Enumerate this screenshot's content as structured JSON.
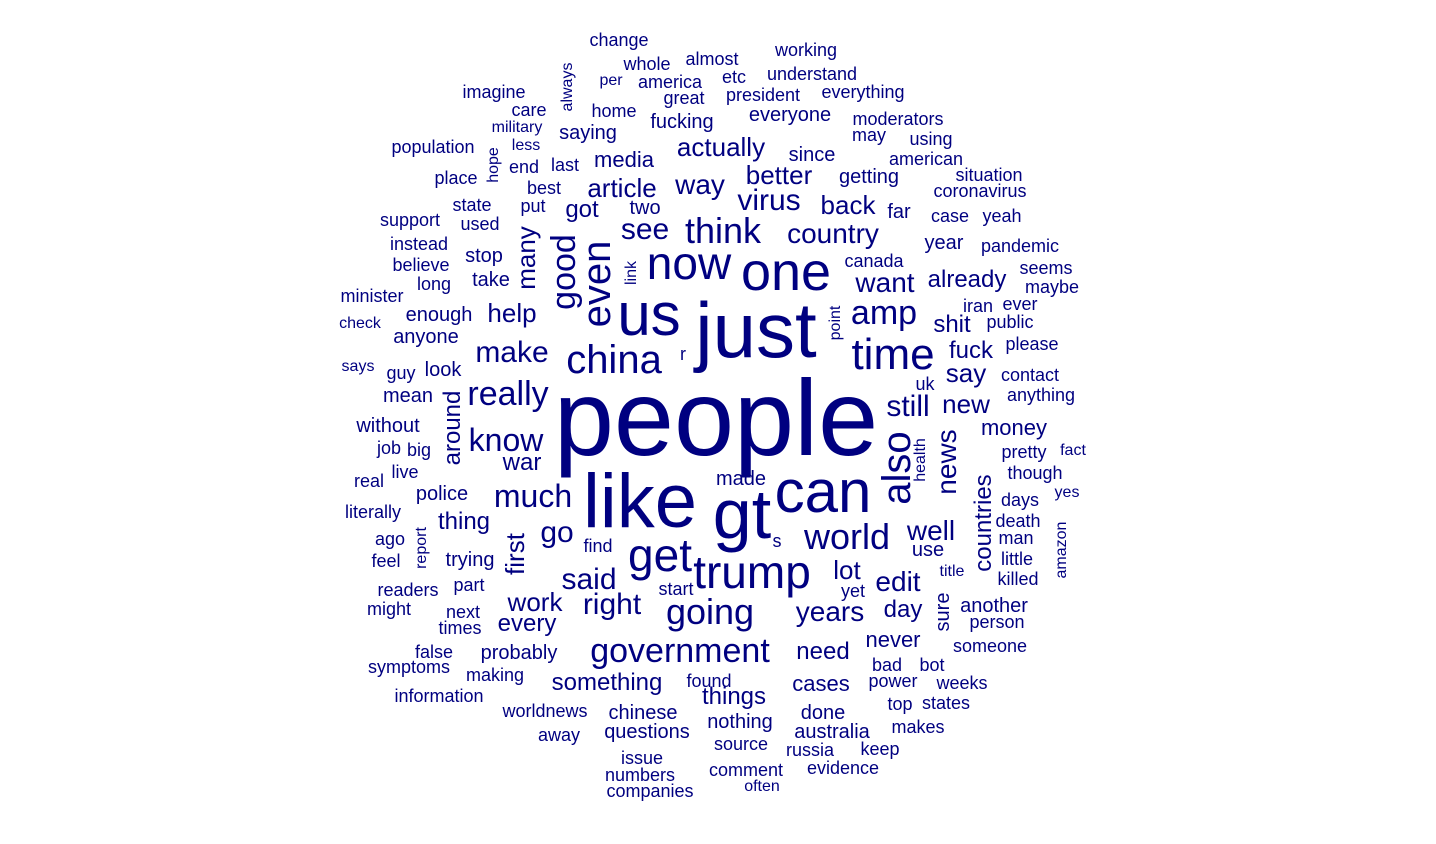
{
  "color": "#000080",
  "words": [
    {
      "text": "people",
      "size": 7
    },
    {
      "text": "just",
      "size": 6
    },
    {
      "text": "like",
      "size": 6
    },
    {
      "text": "gt",
      "size": 5
    },
    {
      "text": "can",
      "size": 5
    },
    {
      "text": "us",
      "size": 5
    },
    {
      "text": "one",
      "size": 5
    },
    {
      "text": "get",
      "size": 4
    },
    {
      "text": "trump",
      "size": 4
    },
    {
      "text": "now",
      "size": 4
    },
    {
      "text": "time",
      "size": 4
    },
    {
      "text": "china",
      "size": 4
    },
    {
      "text": "even",
      "size": 4
    },
    {
      "text": "also",
      "size": 4
    },
    {
      "text": "think",
      "size": 3
    },
    {
      "text": "world",
      "size": 3
    },
    {
      "text": "government",
      "size": 3
    },
    {
      "text": "going",
      "size": 3
    },
    {
      "text": "good",
      "size": 3
    },
    {
      "text": "amp",
      "size": 3
    },
    {
      "text": "really",
      "size": 3
    },
    {
      "text": "know",
      "size": 3
    },
    {
      "text": "much",
      "size": 3
    },
    {
      "text": "make",
      "size": 2
    },
    {
      "text": "said",
      "size": 2
    },
    {
      "text": "right",
      "size": 2
    },
    {
      "text": "see",
      "size": 2
    },
    {
      "text": "country",
      "size": 2
    },
    {
      "text": "virus",
      "size": 2
    },
    {
      "text": "want",
      "size": 2
    },
    {
      "text": "way",
      "size": 2
    },
    {
      "text": "still",
      "size": 2
    },
    {
      "text": "go",
      "size": 2
    },
    {
      "text": "well",
      "size": 2
    },
    {
      "text": "years",
      "size": 2
    },
    {
      "text": "edit",
      "size": 2
    },
    {
      "text": "news",
      "size": 2
    },
    {
      "text": "better",
      "size": 2
    },
    {
      "text": "back",
      "size": 2
    },
    {
      "text": "actually",
      "size": 2
    },
    {
      "text": "article",
      "size": 2
    },
    {
      "text": "help",
      "size": 2
    },
    {
      "text": "many",
      "size": 2
    },
    {
      "text": "first",
      "size": 2
    },
    {
      "text": "countries",
      "size": 2
    },
    {
      "text": "lot",
      "size": 2
    },
    {
      "text": "day",
      "size": 2
    },
    {
      "text": "war",
      "size": 2
    },
    {
      "text": "work",
      "size": 2
    },
    {
      "text": "around",
      "size": 2
    },
    {
      "text": "new",
      "size": 2
    },
    {
      "text": "say",
      "size": 2
    },
    {
      "text": "fuck",
      "size": 2
    },
    {
      "text": "shit",
      "size": 2
    },
    {
      "text": "already",
      "size": 2
    },
    {
      "text": "need",
      "size": 2
    },
    {
      "text": "got",
      "size": 2
    },
    {
      "text": "something",
      "size": 1
    },
    {
      "text": "every",
      "size": 1
    },
    {
      "text": "things",
      "size": 1
    },
    {
      "text": "cases",
      "size": 1
    },
    {
      "text": "thing",
      "size": 1
    },
    {
      "text": "never",
      "size": 1
    },
    {
      "text": "money",
      "size": 1
    },
    {
      "text": "media",
      "size": 1
    },
    {
      "text": "since",
      "size": 1
    },
    {
      "text": "everyone",
      "size": 1
    },
    {
      "text": "fucking",
      "size": 1
    },
    {
      "text": "saying",
      "size": 1
    },
    {
      "text": "probably",
      "size": 1
    },
    {
      "text": "police",
      "size": 1
    },
    {
      "text": "take",
      "size": 1
    },
    {
      "text": "stop",
      "size": 1
    },
    {
      "text": "year",
      "size": 1
    },
    {
      "text": "far",
      "size": 1
    },
    {
      "text": "getting",
      "size": 1
    },
    {
      "text": "two",
      "size": 1
    },
    {
      "text": "enough",
      "size": 1
    },
    {
      "text": "anyone",
      "size": 1
    },
    {
      "text": "look",
      "size": 1
    },
    {
      "text": "made",
      "size": 1
    },
    {
      "text": "use",
      "size": 1
    },
    {
      "text": "sure",
      "size": 1
    },
    {
      "text": "another",
      "size": 1
    },
    {
      "text": "done",
      "size": 1
    },
    {
      "text": "chinese",
      "size": 1
    },
    {
      "text": "nothing",
      "size": 1
    },
    {
      "text": "questions",
      "size": 1
    },
    {
      "text": "source",
      "size": 1
    },
    {
      "text": "australia",
      "size": 1
    },
    {
      "text": "president",
      "size": 1
    },
    {
      "text": "great",
      "size": 1
    },
    {
      "text": "home",
      "size": 1
    },
    {
      "text": "best",
      "size": 1
    },
    {
      "text": "used",
      "size": 1
    },
    {
      "text": "put",
      "size": 1
    },
    {
      "text": "last",
      "size": 1
    },
    {
      "text": "end",
      "size": 1
    },
    {
      "text": "trying",
      "size": 1
    },
    {
      "text": "part",
      "size": 1
    },
    {
      "text": "pretty",
      "size": 1
    },
    {
      "text": "though",
      "size": 1
    },
    {
      "text": "days",
      "size": 1
    },
    {
      "text": "uk",
      "size": 1
    },
    {
      "text": "health",
      "size": 1
    },
    {
      "text": "public",
      "size": 1
    },
    {
      "text": "please",
      "size": 1
    },
    {
      "text": "contact",
      "size": 1
    },
    {
      "text": "anything",
      "size": 1
    },
    {
      "text": "power",
      "size": 1
    },
    {
      "text": "bad",
      "size": 1
    },
    {
      "text": "bot",
      "size": 1
    },
    {
      "text": "american",
      "size": 1
    },
    {
      "text": "coronavirus",
      "size": 1
    },
    {
      "text": "pandemic",
      "size": 1
    },
    {
      "text": "moderators",
      "size": 1
    },
    {
      "text": "everything",
      "size": 1
    },
    {
      "text": "understand",
      "size": 1
    },
    {
      "text": "america",
      "size": 1
    },
    {
      "text": "almost",
      "size": 1
    },
    {
      "text": "whole",
      "size": 1
    },
    {
      "text": "change",
      "size": 1
    },
    {
      "text": "working",
      "size": 1
    },
    {
      "text": "etc",
      "size": 1
    },
    {
      "text": "per",
      "size": 1
    },
    {
      "text": "always",
      "size": 1
    },
    {
      "text": "imagine",
      "size": 1
    },
    {
      "text": "care",
      "size": 1
    },
    {
      "text": "military",
      "size": 1
    },
    {
      "text": "less",
      "size": 1
    },
    {
      "text": "population",
      "size": 1
    },
    {
      "text": "hope",
      "size": 1
    },
    {
      "text": "place",
      "size": 1
    },
    {
      "text": "state",
      "size": 1
    },
    {
      "text": "support",
      "size": 1
    },
    {
      "text": "instead",
      "size": 1
    },
    {
      "text": "believe",
      "size": 1
    },
    {
      "text": "long",
      "size": 1
    },
    {
      "text": "minister",
      "size": 1
    },
    {
      "text": "check",
      "size": 1
    },
    {
      "text": "says",
      "size": 1
    },
    {
      "text": "guy",
      "size": 1
    },
    {
      "text": "mean",
      "size": 1
    },
    {
      "text": "without",
      "size": 1
    },
    {
      "text": "job",
      "size": 1
    },
    {
      "text": "big",
      "size": 1
    },
    {
      "text": "real",
      "size": 1
    },
    {
      "text": "live",
      "size": 1
    },
    {
      "text": "literally",
      "size": 1
    },
    {
      "text": "ago",
      "size": 1
    },
    {
      "text": "report",
      "size": 1
    },
    {
      "text": "feel",
      "size": 1
    },
    {
      "text": "readers",
      "size": 1
    },
    {
      "text": "might",
      "size": 1
    },
    {
      "text": "next",
      "size": 1
    },
    {
      "text": "times",
      "size": 1
    },
    {
      "text": "false",
      "size": 1
    },
    {
      "text": "symptoms",
      "size": 1
    },
    {
      "text": "making",
      "size": 1
    },
    {
      "text": "information",
      "size": 1
    },
    {
      "text": "worldnews",
      "size": 1
    },
    {
      "text": "away",
      "size": 1
    },
    {
      "text": "issue",
      "size": 1
    },
    {
      "text": "numbers",
      "size": 1
    },
    {
      "text": "companies",
      "size": 1
    },
    {
      "text": "comment",
      "size": 1
    },
    {
      "text": "often",
      "size": 1
    },
    {
      "text": "evidence",
      "size": 1
    },
    {
      "text": "russia",
      "size": 1
    },
    {
      "text": "keep",
      "size": 1
    },
    {
      "text": "makes",
      "size": 1
    },
    {
      "text": "top",
      "size": 1
    },
    {
      "text": "states",
      "size": 1
    },
    {
      "text": "weeks",
      "size": 1
    },
    {
      "text": "someone",
      "size": 1
    },
    {
      "text": "person",
      "size": 1
    },
    {
      "text": "title",
      "size": 1
    },
    {
      "text": "killed",
      "size": 1
    },
    {
      "text": "little",
      "size": 1
    },
    {
      "text": "man",
      "size": 1
    },
    {
      "text": "death",
      "size": 1
    },
    {
      "text": "amazon",
      "size": 1
    },
    {
      "text": "yes",
      "size": 1
    },
    {
      "text": "fact",
      "size": 1
    },
    {
      "text": "maybe",
      "size": 1
    },
    {
      "text": "seems",
      "size": 1
    },
    {
      "text": "ever",
      "size": 1
    },
    {
      "text": "iran",
      "size": 1
    },
    {
      "text": "canada",
      "size": 1
    },
    {
      "text": "case",
      "size": 1
    },
    {
      "text": "yeah",
      "size": 1
    },
    {
      "text": "situation",
      "size": 1
    },
    {
      "text": "using",
      "size": 1
    },
    {
      "text": "may",
      "size": 1
    },
    {
      "text": "point",
      "size": 1
    },
    {
      "text": "link",
      "size": 1
    },
    {
      "text": "r",
      "size": 1
    },
    {
      "text": "s",
      "size": 1
    },
    {
      "text": "find",
      "size": 1
    },
    {
      "text": "start",
      "size": 1
    },
    {
      "text": "yet",
      "size": 1
    },
    {
      "text": "found",
      "size": 1
    }
  ]
}
